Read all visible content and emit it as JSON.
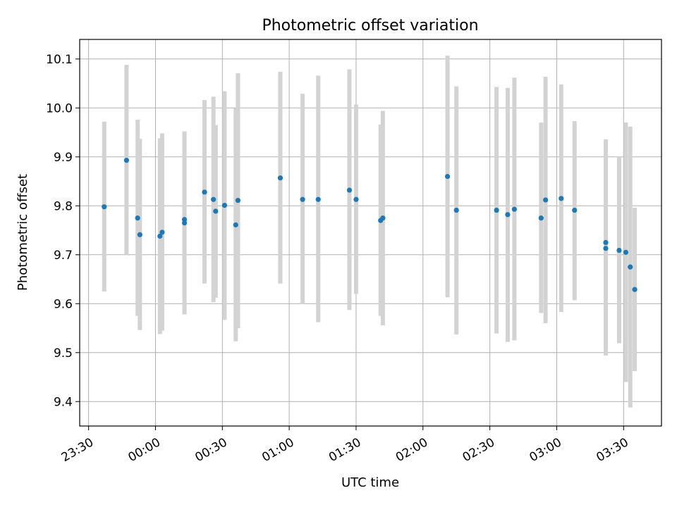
{
  "chart_data": {
    "type": "scatter",
    "title": "Photometric offset variation",
    "xlabel": "UTC time",
    "ylabel": "Photometric offset",
    "grid": true,
    "ylim": [
      9.35,
      10.14
    ],
    "xlim": [
      "23:26",
      "03:47"
    ],
    "x_ticks": [
      "23:30",
      "00:00",
      "00:30",
      "01:00",
      "01:30",
      "02:00",
      "02:30",
      "03:00",
      "03:30"
    ],
    "y_ticks": [
      "9.4",
      "9.5",
      "9.6",
      "9.7",
      "9.8",
      "9.9",
      "10.0",
      "10.1"
    ],
    "point_color": "#1f77b4",
    "errorbar_color": "#d3d3d3",
    "points": [
      {
        "x": "23:37",
        "y": 9.798,
        "lo": 9.625,
        "hi": 9.972
      },
      {
        "x": "23:47",
        "y": 9.893,
        "lo": 9.7,
        "hi": 10.088
      },
      {
        "x": "23:52",
        "y": 9.775,
        "lo": 9.575,
        "hi": 9.976
      },
      {
        "x": "23:53",
        "y": 9.741,
        "lo": 9.546,
        "hi": 9.937
      },
      {
        "x": "00:02",
        "y": 9.738,
        "lo": 9.538,
        "hi": 9.938
      },
      {
        "x": "00:03",
        "y": 9.746,
        "lo": 9.545,
        "hi": 9.948
      },
      {
        "x": "00:13",
        "y": 9.772,
        "lo": 9.59,
        "hi": 9.952
      },
      {
        "x": "00:13",
        "y": 9.765,
        "lo": 9.578,
        "hi": 9.952
      },
      {
        "x": "00:22",
        "y": 9.828,
        "lo": 9.641,
        "hi": 10.016
      },
      {
        "x": "00:26",
        "y": 9.813,
        "lo": 9.603,
        "hi": 10.023
      },
      {
        "x": "00:27",
        "y": 9.789,
        "lo": 9.612,
        "hi": 9.965
      },
      {
        "x": "00:31",
        "y": 9.801,
        "lo": 9.567,
        "hi": 10.034
      },
      {
        "x": "00:36",
        "y": 9.761,
        "lo": 9.523,
        "hi": 9.999
      },
      {
        "x": "00:37",
        "y": 9.811,
        "lo": 9.55,
        "hi": 10.071
      },
      {
        "x": "00:56",
        "y": 9.857,
        "lo": 9.641,
        "hi": 10.074
      },
      {
        "x": "01:06",
        "y": 9.813,
        "lo": 9.599,
        "hi": 10.029
      },
      {
        "x": "01:13",
        "y": 9.813,
        "lo": 9.562,
        "hi": 10.066
      },
      {
        "x": "01:27",
        "y": 9.832,
        "lo": 9.587,
        "hi": 10.079
      },
      {
        "x": "01:30",
        "y": 9.813,
        "lo": 9.62,
        "hi": 10.007
      },
      {
        "x": "01:41",
        "y": 9.77,
        "lo": 9.575,
        "hi": 9.966
      },
      {
        "x": "01:42",
        "y": 9.775,
        "lo": 9.556,
        "hi": 9.994
      },
      {
        "x": "02:11",
        "y": 9.86,
        "lo": 9.613,
        "hi": 10.107
      },
      {
        "x": "02:15",
        "y": 9.791,
        "lo": 9.537,
        "hi": 10.044
      },
      {
        "x": "02:33",
        "y": 9.791,
        "lo": 9.539,
        "hi": 10.043
      },
      {
        "x": "02:38",
        "y": 9.782,
        "lo": 9.522,
        "hi": 10.041
      },
      {
        "x": "02:41",
        "y": 9.793,
        "lo": 9.525,
        "hi": 10.062
      },
      {
        "x": "02:53",
        "y": 9.775,
        "lo": 9.581,
        "hi": 9.97
      },
      {
        "x": "02:55",
        "y": 9.812,
        "lo": 9.56,
        "hi": 10.064
      },
      {
        "x": "03:02",
        "y": 9.815,
        "lo": 9.583,
        "hi": 10.048
      },
      {
        "x": "03:08",
        "y": 9.791,
        "lo": 9.607,
        "hi": 9.973
      },
      {
        "x": "03:22",
        "y": 9.713,
        "lo": 9.494,
        "hi": 9.934
      },
      {
        "x": "03:22",
        "y": 9.725,
        "lo": 9.514,
        "hi": 9.936
      },
      {
        "x": "03:28",
        "y": 9.709,
        "lo": 9.519,
        "hi": 9.9
      },
      {
        "x": "03:31",
        "y": 9.705,
        "lo": 9.44,
        "hi": 9.97
      },
      {
        "x": "03:33",
        "y": 9.675,
        "lo": 9.388,
        "hi": 9.962
      },
      {
        "x": "03:35",
        "y": 9.629,
        "lo": 9.462,
        "hi": 9.796
      }
    ]
  }
}
